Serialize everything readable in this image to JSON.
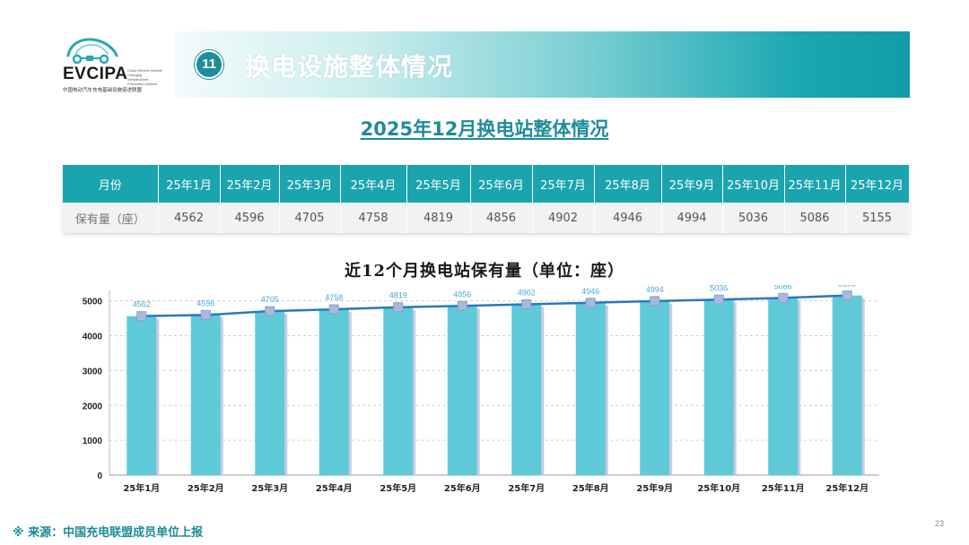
{
  "logo": {
    "name": "EVCIPA",
    "english": "China Electric Vehicle Charging Infrastructure Promotion Alliance",
    "chinese": "中国电动汽车充电基础设施促进联盟"
  },
  "header": {
    "number": "11",
    "title": "换电设施整体情况"
  },
  "subtitle": "2025年12月换电站整体情况",
  "table": {
    "row_header_1": "月份",
    "row_header_2": "保有量（座）",
    "months": [
      "25年1月",
      "25年2月",
      "25年3月",
      "25年4月",
      "25年5月",
      "25年6月",
      "25年7月",
      "25年8月",
      "25年9月",
      "25年10月",
      "25年11月",
      "25年12月"
    ],
    "values": [
      "4562",
      "4596",
      "4705",
      "4758",
      "4819",
      "4856",
      "4902",
      "4946",
      "4994",
      "5036",
      "5086",
      "5155"
    ]
  },
  "chart_data": {
    "type": "bar",
    "title": "近12个月换电站保有量（单位：座）",
    "categories": [
      "25年1月",
      "25年2月",
      "25年3月",
      "25年4月",
      "25年5月",
      "25年6月",
      "25年7月",
      "25年8月",
      "25年9月",
      "25年10月",
      "25年11月",
      "25年12月"
    ],
    "series": [
      {
        "name": "保有量（bar）",
        "values": [
          4562,
          4596,
          4705,
          4758,
          4819,
          4856,
          4902,
          4946,
          4994,
          5036,
          5086,
          5155
        ]
      },
      {
        "name": "保有量（line）",
        "values": [
          4562,
          4596,
          4705,
          4758,
          4819,
          4856,
          4902,
          4946,
          4994,
          5036,
          5086,
          5155
        ]
      }
    ],
    "yticks": [
      0,
      1000,
      2000,
      3000,
      4000,
      5000
    ],
    "ylim": [
      0,
      5300
    ],
    "xlabel": "",
    "ylabel": "",
    "colors": {
      "bar": "#5ecad8",
      "bar_shadow": "#c9cbe6",
      "line": "#2b77c0",
      "marker": "#a9b9de",
      "label": "#4aa9d6",
      "grid": "#d0d0d0"
    }
  },
  "source": "※ 来源：中国充电联盟成员单位上报",
  "page_number": "23"
}
